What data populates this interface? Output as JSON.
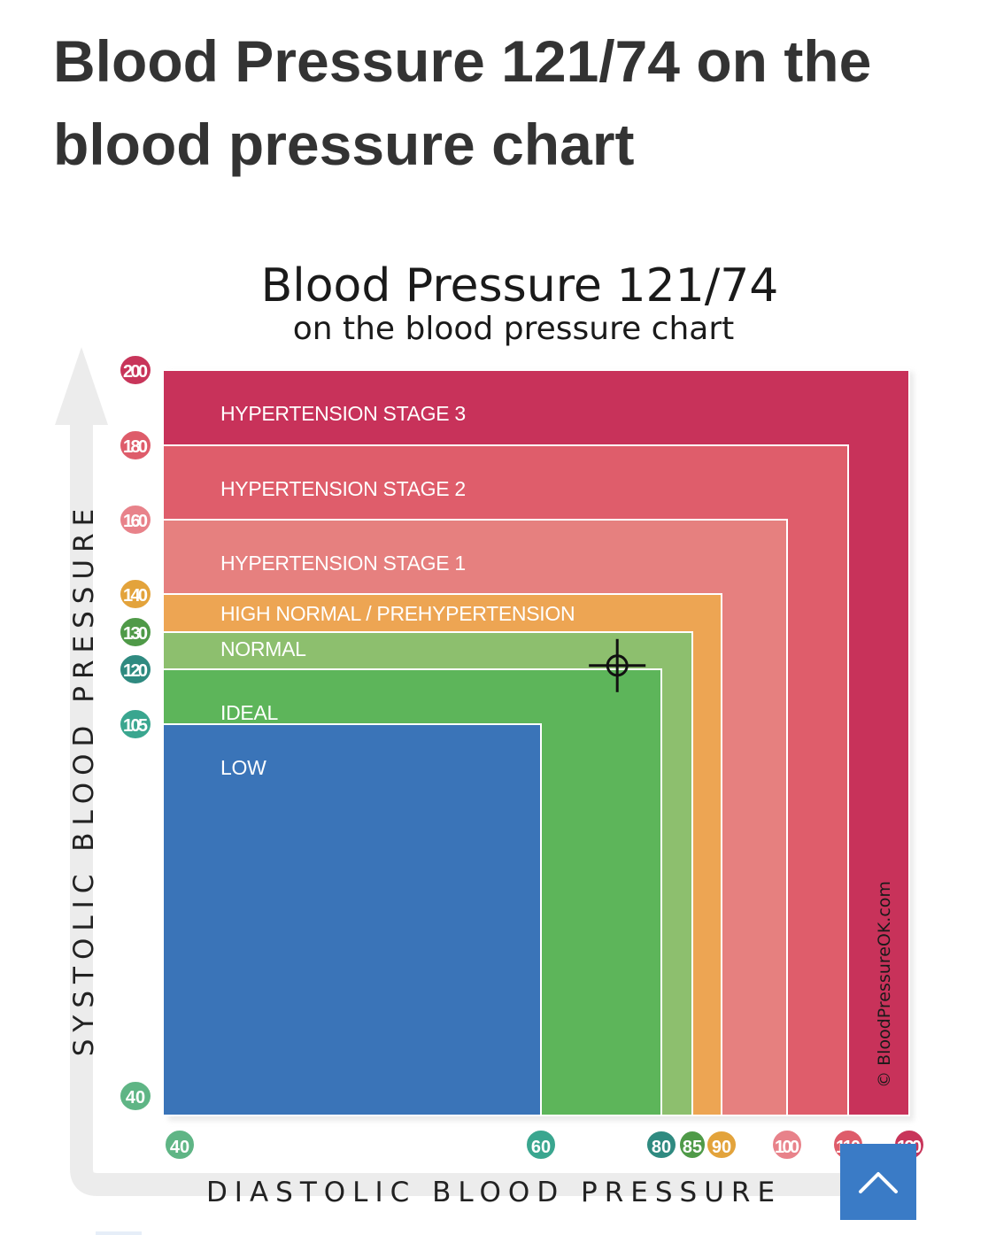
{
  "page": {
    "title": "Blood Pressure 121/74 on the blood pressure chart"
  },
  "scroll_top": {
    "icon": "chevron-up-icon",
    "color": "#3a7bc6"
  },
  "chart_data": {
    "type": "area",
    "title": "Blood Pressure 121/74",
    "subtitle": "on the blood pressure chart",
    "xlabel": "DIASTOLIC BLOOD PRESSURE",
    "ylabel": "SYSTOLIC BLOOD PRESSURE",
    "watermark": "© BloodPressureOK.com",
    "x_ticks": [
      {
        "value": 40,
        "label": "40",
        "color": "#5fb585"
      },
      {
        "value": 60,
        "label": "60",
        "color": "#3aa68f"
      },
      {
        "value": 80,
        "label": "80",
        "color": "#2f8a80"
      },
      {
        "value": 85,
        "label": "85",
        "color": "#4f9a48"
      },
      {
        "value": 90,
        "label": "90",
        "color": "#e3a33b"
      },
      {
        "value": 100,
        "label": "100",
        "color": "#e8828a"
      },
      {
        "value": 110,
        "label": "110",
        "color": "#de5c6a"
      },
      {
        "value": 120,
        "label": "120",
        "color": "#c8355a"
      }
    ],
    "y_ticks": [
      {
        "value": 40,
        "label": "40",
        "color": "#5fb585"
      },
      {
        "value": 105,
        "label": "105",
        "color": "#3aa68f"
      },
      {
        "value": 120,
        "label": "120",
        "color": "#2f8a80"
      },
      {
        "value": 130,
        "label": "130",
        "color": "#4f9a48"
      },
      {
        "value": 140,
        "label": "140",
        "color": "#e3a33b"
      },
      {
        "value": 160,
        "label": "160",
        "color": "#e8828a"
      },
      {
        "value": 180,
        "label": "180",
        "color": "#de5c6a"
      },
      {
        "value": 200,
        "label": "200",
        "color": "#c8355a"
      }
    ],
    "zones": [
      {
        "label": "HYPERTENSION STAGE 3",
        "diastolic_max": 120,
        "systolic_max": 200,
        "color": "#c8325a"
      },
      {
        "label": "HYPERTENSION STAGE 2",
        "diastolic_max": 110,
        "systolic_max": 180,
        "color": "#df5d6b"
      },
      {
        "label": "HYPERTENSION STAGE 1",
        "diastolic_max": 100,
        "systolic_max": 160,
        "color": "#e6807f"
      },
      {
        "label": "HIGH NORMAL / PREHYPERTENSION",
        "diastolic_max": 90,
        "systolic_max": 140,
        "color": "#eda553"
      },
      {
        "label": "NORMAL",
        "diastolic_max": 85,
        "systolic_max": 130,
        "color": "#8dbf6e"
      },
      {
        "label": "IDEAL",
        "diastolic_max": 80,
        "systolic_max": 120,
        "color": "#5db55a"
      },
      {
        "label": "LOW",
        "diastolic_max": 60,
        "systolic_max": 105,
        "color": "#3a74b8"
      }
    ],
    "marker": {
      "systolic": 121,
      "diastolic": 74
    }
  }
}
